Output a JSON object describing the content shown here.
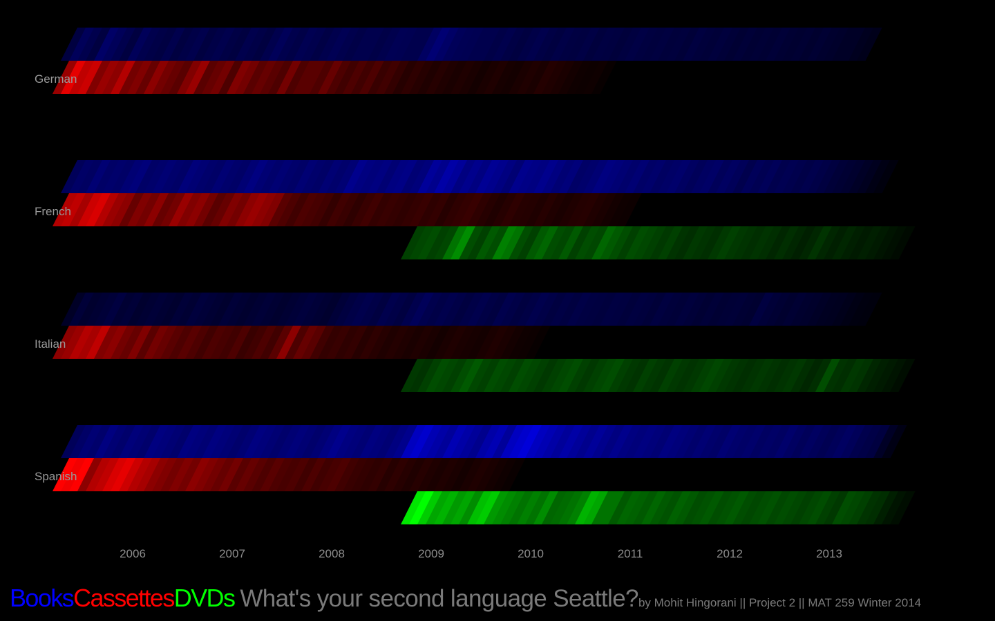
{
  "title": "What's your second language Seattle?",
  "credit": "by Mohit Hingorani || Project 2 || MAT 259 Winter 2014",
  "legend": [
    {
      "label": "Books",
      "color": "#0000ff"
    },
    {
      "label": "Cassettes",
      "color": "#ff0000"
    },
    {
      "label": "DVDs",
      "color": "#00ff00"
    }
  ],
  "chart_data": {
    "type": "heatmap",
    "x_ticks": [
      "2006",
      "2007",
      "2008",
      "2009",
      "2010",
      "2011",
      "2012",
      "2013"
    ],
    "x_range": [
      "2005-07",
      "2013-11"
    ],
    "value_encoding": "color intensity (relative monthly checkout level, 0-1)",
    "languages": [
      {
        "name": "German",
        "series": [
          {
            "media": "Books",
            "start": "2005-08",
            "end": "2013-10",
            "levels": [
              0.25,
              0.35,
              0.3,
              0.25,
              0.4,
              0.35,
              0.3,
              0.25,
              0.35,
              0.3,
              0.28,
              0.26,
              0.3,
              0.25,
              0.28,
              0.3,
              0.25,
              0.28,
              0.3,
              0.27,
              0.25,
              0.3,
              0.28,
              0.25,
              0.3,
              0.35,
              0.3,
              0.28,
              0.32,
              0.3,
              0.27,
              0.3,
              0.33,
              0.3,
              0.28,
              0.3,
              0.3,
              0.28,
              0.3,
              0.33,
              0.32,
              0.3,
              0.3,
              0.38,
              0.45,
              0.4,
              0.35,
              0.33,
              0.32,
              0.3,
              0.3,
              0.28,
              0.3,
              0.27,
              0.25,
              0.28,
              0.3,
              0.27,
              0.25,
              0.28,
              0.26,
              0.25,
              0.27,
              0.24,
              0.26,
              0.25,
              0.23,
              0.25,
              0.27,
              0.25,
              0.24,
              0.25,
              0.23,
              0.24,
              0.22,
              0.25,
              0.23,
              0.22,
              0.24,
              0.22,
              0.2,
              0.22,
              0.2,
              0.21,
              0.2,
              0.22,
              0.2,
              0.19,
              0.2,
              0.18,
              0.2,
              0.18,
              0.17,
              0.15,
              0.15,
              0.12,
              0.1
            ]
          },
          {
            "media": "Cassettes",
            "start": "2005-07",
            "end": "2011-01",
            "levels": [
              0.6,
              0.9,
              0.75,
              0.8,
              0.5,
              0.6,
              0.55,
              0.7,
              0.45,
              0.5,
              0.4,
              0.55,
              0.45,
              0.4,
              0.35,
              0.5,
              0.6,
              0.35,
              0.4,
              0.45,
              0.3,
              0.5,
              0.45,
              0.35,
              0.4,
              0.35,
              0.3,
              0.45,
              0.3,
              0.35,
              0.35,
              0.3,
              0.4,
              0.3,
              0.25,
              0.3,
              0.25,
              0.3,
              0.22,
              0.25,
              0.2,
              0.15,
              0.18,
              0.15,
              0.12,
              0.15,
              0.12,
              0.1,
              0.12,
              0.1,
              0.08,
              0.1,
              0.12,
              0.09,
              0.08,
              0.1,
              0.12,
              0.1,
              0.14,
              0.12,
              0.1,
              0.08,
              0.06,
              0.05,
              0.06,
              0.03
            ]
          },
          {
            "media": "DVDs",
            "start": null,
            "end": null,
            "levels": []
          }
        ]
      },
      {
        "name": "French",
        "series": [
          {
            "media": "Books",
            "start": "2005-08",
            "end": "2013-11",
            "levels": [
              0.35,
              0.4,
              0.38,
              0.45,
              0.4,
              0.42,
              0.4,
              0.45,
              0.48,
              0.4,
              0.42,
              0.45,
              0.42,
              0.4,
              0.48,
              0.45,
              0.42,
              0.4,
              0.45,
              0.42,
              0.4,
              0.45,
              0.5,
              0.45,
              0.42,
              0.45,
              0.42,
              0.4,
              0.45,
              0.42,
              0.4,
              0.45,
              0.42,
              0.45,
              0.55,
              0.5,
              0.48,
              0.5,
              0.45,
              0.5,
              0.52,
              0.45,
              0.48,
              0.6,
              0.55,
              0.65,
              0.6,
              0.5,
              0.55,
              0.5,
              0.58,
              0.55,
              0.5,
              0.45,
              0.55,
              0.52,
              0.5,
              0.55,
              0.5,
              0.45,
              0.48,
              0.4,
              0.42,
              0.45,
              0.5,
              0.48,
              0.45,
              0.42,
              0.45,
              0.4,
              0.42,
              0.38,
              0.4,
              0.42,
              0.38,
              0.35,
              0.38,
              0.4,
              0.35,
              0.38,
              0.35,
              0.3,
              0.35,
              0.32,
              0.35,
              0.3,
              0.32,
              0.3,
              0.28,
              0.3,
              0.28,
              0.25,
              0.22,
              0.2,
              0.18,
              0.15,
              0.12,
              0.08,
              0.05
            ]
          },
          {
            "media": "Cassettes",
            "start": "2005-07",
            "end": "2011-05",
            "levels": [
              0.7,
              0.75,
              0.65,
              0.8,
              0.85,
              0.7,
              0.6,
              0.55,
              0.4,
              0.5,
              0.45,
              0.55,
              0.4,
              0.45,
              0.6,
              0.5,
              0.55,
              0.45,
              0.35,
              0.4,
              0.5,
              0.45,
              0.55,
              0.6,
              0.55,
              0.5,
              0.35,
              0.3,
              0.25,
              0.3,
              0.28,
              0.25,
              0.2,
              0.25,
              0.22,
              0.18,
              0.22,
              0.25,
              0.2,
              0.22,
              0.2,
              0.18,
              0.2,
              0.22,
              0.18,
              0.2,
              0.15,
              0.18,
              0.2,
              0.22,
              0.18,
              0.15,
              0.12,
              0.15,
              0.18,
              0.15,
              0.14,
              0.12,
              0.15,
              0.12,
              0.1,
              0.12,
              0.14,
              0.15,
              0.12,
              0.1,
              0.08,
              0.06,
              0.05
            ]
          },
          {
            "media": "DVDs",
            "start": "2009-01",
            "end": "2013-12",
            "levels": [
              0.25,
              0.28,
              0.3,
              0.25,
              0.28,
              0.45,
              0.55,
              0.3,
              0.25,
              0.35,
              0.3,
              0.5,
              0.45,
              0.3,
              0.25,
              0.35,
              0.4,
              0.3,
              0.28,
              0.35,
              0.25,
              0.3,
              0.28,
              0.4,
              0.35,
              0.3,
              0.25,
              0.3,
              0.28,
              0.25,
              0.22,
              0.25,
              0.2,
              0.18,
              0.22,
              0.2,
              0.18,
              0.22,
              0.25,
              0.22,
              0.2,
              0.18,
              0.2,
              0.18,
              0.15,
              0.18,
              0.15,
              0.12,
              0.15,
              0.2,
              0.15,
              0.12,
              0.15,
              0.12,
              0.1,
              0.12,
              0.1,
              0.08,
              0.06,
              0.04
            ]
          }
        ]
      },
      {
        "name": "Italian",
        "series": [
          {
            "media": "Books",
            "start": "2005-08",
            "end": "2013-10",
            "levels": [
              0.15,
              0.22,
              0.18,
              0.2,
              0.22,
              0.25,
              0.2,
              0.22,
              0.18,
              0.2,
              0.22,
              0.2,
              0.18,
              0.22,
              0.2,
              0.24,
              0.22,
              0.2,
              0.18,
              0.22,
              0.2,
              0.18,
              0.2,
              0.22,
              0.2,
              0.18,
              0.2,
              0.22,
              0.24,
              0.22,
              0.2,
              0.18,
              0.22,
              0.25,
              0.28,
              0.3,
              0.28,
              0.25,
              0.3,
              0.28,
              0.25,
              0.3,
              0.35,
              0.3,
              0.28,
              0.3,
              0.28,
              0.25,
              0.28,
              0.3,
              0.27,
              0.25,
              0.3,
              0.28,
              0.25,
              0.27,
              0.3,
              0.28,
              0.25,
              0.27,
              0.25,
              0.28,
              0.26,
              0.25,
              0.24,
              0.26,
              0.25,
              0.23,
              0.25,
              0.24,
              0.22,
              0.25,
              0.23,
              0.22,
              0.24,
              0.22,
              0.2,
              0.22,
              0.2,
              0.21,
              0.22,
              0.2,
              0.19,
              0.25,
              0.22,
              0.2,
              0.18,
              0.2,
              0.18,
              0.17,
              0.15,
              0.13,
              0.12,
              0.1,
              0.08,
              0.06,
              0.05
            ]
          },
          {
            "media": "Cassettes",
            "start": "2005-07",
            "end": "2010-05",
            "levels": [
              0.55,
              0.6,
              0.7,
              0.65,
              0.75,
              0.5,
              0.55,
              0.45,
              0.4,
              0.5,
              0.35,
              0.45,
              0.4,
              0.35,
              0.3,
              0.35,
              0.3,
              0.25,
              0.3,
              0.28,
              0.25,
              0.3,
              0.22,
              0.25,
              0.3,
              0.25,
              0.35,
              0.55,
              0.3,
              0.4,
              0.35,
              0.25,
              0.2,
              0.22,
              0.18,
              0.2,
              0.15,
              0.18,
              0.15,
              0.12,
              0.14,
              0.12,
              0.1,
              0.12,
              0.1,
              0.08,
              0.1,
              0.12,
              0.1,
              0.09,
              0.08,
              0.1,
              0.12,
              0.1,
              0.08,
              0.06,
              0.05,
              0.03
            ]
          },
          {
            "media": "DVDs",
            "start": "2009-01",
            "end": "2013-12",
            "levels": [
              0.22,
              0.2,
              0.25,
              0.3,
              0.28,
              0.25,
              0.3,
              0.35,
              0.28,
              0.25,
              0.3,
              0.28,
              0.25,
              0.3,
              0.28,
              0.25,
              0.22,
              0.25,
              0.28,
              0.3,
              0.25,
              0.22,
              0.25,
              0.28,
              0.3,
              0.25,
              0.22,
              0.2,
              0.25,
              0.22,
              0.2,
              0.25,
              0.22,
              0.2,
              0.22,
              0.25,
              0.28,
              0.25,
              0.22,
              0.2,
              0.18,
              0.2,
              0.22,
              0.2,
              0.18,
              0.2,
              0.22,
              0.18,
              0.15,
              0.18,
              0.3,
              0.2,
              0.18,
              0.22,
              0.2,
              0.15,
              0.12,
              0.1,
              0.08,
              0.05
            ]
          }
        ]
      },
      {
        "name": "Spanish",
        "series": [
          {
            "media": "Books",
            "start": "2005-08",
            "end": "2013-11",
            "levels": [
              0.35,
              0.4,
              0.45,
              0.42,
              0.5,
              0.45,
              0.42,
              0.48,
              0.45,
              0.42,
              0.5,
              0.48,
              0.45,
              0.42,
              0.5,
              0.48,
              0.45,
              0.5,
              0.48,
              0.45,
              0.42,
              0.45,
              0.5,
              0.48,
              0.45,
              0.42,
              0.45,
              0.48,
              0.45,
              0.42,
              0.45,
              0.5,
              0.55,
              0.5,
              0.48,
              0.45,
              0.5,
              0.48,
              0.45,
              0.5,
              0.55,
              0.75,
              0.8,
              0.7,
              0.65,
              0.6,
              0.7,
              0.65,
              0.6,
              0.55,
              0.65,
              0.7,
              0.6,
              0.75,
              0.8,
              0.85,
              0.75,
              0.7,
              0.65,
              0.6,
              0.65,
              0.6,
              0.55,
              0.6,
              0.55,
              0.5,
              0.55,
              0.5,
              0.48,
              0.5,
              0.48,
              0.45,
              0.5,
              0.48,
              0.45,
              0.42,
              0.45,
              0.42,
              0.4,
              0.45,
              0.42,
              0.4,
              0.42,
              0.38,
              0.4,
              0.38,
              0.42,
              0.38,
              0.35,
              0.38,
              0.35,
              0.32,
              0.35,
              0.38,
              0.35,
              0.3,
              0.28,
              0.25,
              0.15,
              0.08
            ]
          },
          {
            "media": "Cassettes",
            "start": "2005-07",
            "end": "2010-02",
            "levels": [
              1.0,
              0.95,
              1.0,
              0.55,
              0.7,
              0.75,
              0.85,
              0.9,
              0.8,
              0.7,
              0.65,
              0.55,
              0.5,
              0.45,
              0.5,
              0.45,
              0.55,
              0.5,
              0.45,
              0.4,
              0.45,
              0.35,
              0.4,
              0.35,
              0.3,
              0.35,
              0.3,
              0.28,
              0.3,
              0.25,
              0.3,
              0.25,
              0.28,
              0.3,
              0.25,
              0.22,
              0.2,
              0.18,
              0.2,
              0.15,
              0.18,
              0.15,
              0.12,
              0.15,
              0.12,
              0.1,
              0.12,
              0.1,
              0.08,
              0.1,
              0.12,
              0.1,
              0.08,
              0.06,
              0.04
            ]
          },
          {
            "media": "DVDs",
            "start": "2009-01",
            "end": "2013-12",
            "levels": [
              0.9,
              1.0,
              0.8,
              0.65,
              0.7,
              0.6,
              0.65,
              0.55,
              0.75,
              0.8,
              0.6,
              0.55,
              0.5,
              0.45,
              0.5,
              0.45,
              0.55,
              0.4,
              0.42,
              0.45,
              0.5,
              0.7,
              0.65,
              0.45,
              0.45,
              0.35,
              0.4,
              0.38,
              0.35,
              0.4,
              0.35,
              0.32,
              0.38,
              0.35,
              0.3,
              0.32,
              0.35,
              0.3,
              0.32,
              0.35,
              0.3,
              0.28,
              0.3,
              0.32,
              0.28,
              0.3,
              0.28,
              0.25,
              0.28,
              0.3,
              0.25,
              0.22,
              0.3,
              0.28,
              0.25,
              0.2,
              0.18,
              0.12,
              0.08,
              0.05
            ]
          }
        ]
      }
    ]
  }
}
